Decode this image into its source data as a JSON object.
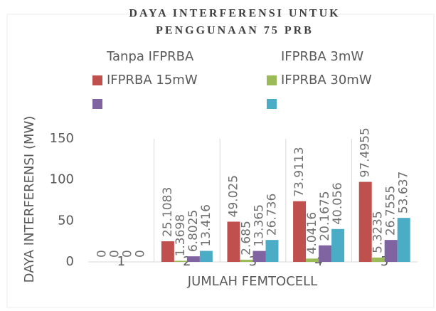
{
  "chart_data": {
    "type": "bar",
    "title": [
      "DAYA INTERFERENSI UNTUK",
      "PENGGUNAAN 75 PRB"
    ],
    "x_label": "JUMLAH FEMTOCELL",
    "y_label": "DAYA INTERFERENSI (MW)",
    "categories": [
      "1",
      "2",
      "3",
      "4",
      "5"
    ],
    "series": [
      {
        "name": "Tanpa IFPRBA",
        "color": "#c0504d",
        "values": [
          0,
          25.1083,
          49.025,
          73.9113,
          97.4955
        ]
      },
      {
        "name": "IFPRBA 3mW",
        "color": "#9bbb59",
        "values": [
          0,
          1.3698,
          2.685,
          4.0416,
          5.3235
        ]
      },
      {
        "name": "IFPRBA 15mW",
        "color": "#8064a2",
        "values": [
          0,
          6.8025,
          13.365,
          20.1675,
          26.7555
        ]
      },
      {
        "name": "IFPRBA 30mW",
        "color": "#4bacc6",
        "values": [
          0,
          13.416,
          26.736,
          40.056,
          53.637
        ]
      }
    ],
    "ylim": [
      0,
      150
    ],
    "yticks": [
      0,
      50,
      100,
      150
    ]
  }
}
